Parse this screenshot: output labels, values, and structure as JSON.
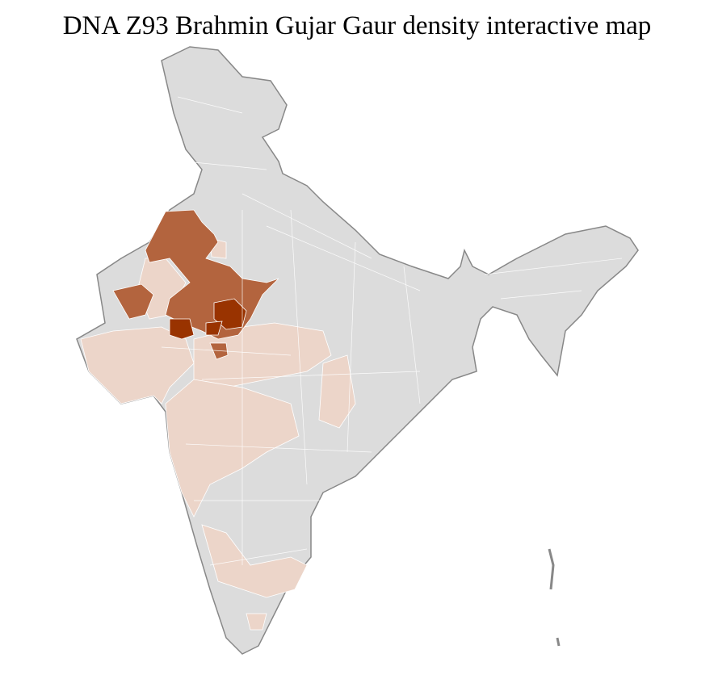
{
  "title": "DNA Z93 Brahmin Gujar Gaur density interactive map",
  "map": {
    "region": "India (districts)",
    "colors": {
      "no_data": "#dcdcdc",
      "low": "#ecd5c9",
      "medium": "#b3643e",
      "high": "#993300",
      "border": "#888888"
    }
  }
}
